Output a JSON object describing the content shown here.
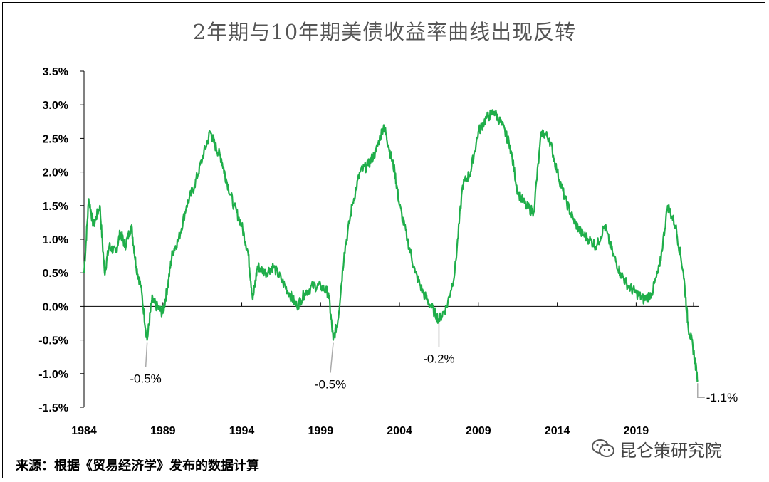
{
  "source_note": "来源：根据《贸易经济学》发布的数据计算",
  "watermark": {
    "text": "昆仑策研究院",
    "icon": "wechat-icon"
  },
  "chart_data": {
    "type": "line",
    "title": "2年期与10年期美债收益率曲线出现反转",
    "xlabel": "",
    "ylabel": "",
    "xlim": [
      1984,
      2023
    ],
    "ylim": [
      -1.5,
      3.5
    ],
    "x_ticks": [
      1984,
      1989,
      1994,
      1999,
      2004,
      2009,
      2014,
      2019
    ],
    "x_tick_labels": [
      "1984",
      "1989",
      "1994",
      "1999",
      "2004",
      "2009",
      "2014",
      "2019"
    ],
    "y_ticks": [
      -1.5,
      -1.0,
      -0.5,
      0.0,
      0.5,
      1.0,
      1.5,
      2.0,
      2.5,
      3.0,
      3.5
    ],
    "y_tick_labels": [
      "-1.5%",
      "-1.0%",
      "-0.5%",
      "0.0%",
      "0.5%",
      "1.0%",
      "1.5%",
      "2.0%",
      "2.5%",
      "3.0%",
      "3.5%"
    ],
    "grid": false,
    "legend": "none",
    "colors": {
      "line": "#1fae4a",
      "axis": "#000000",
      "leader": "#aaaaaa"
    },
    "series": [
      {
        "x": [
          1984.0,
          1984.3,
          1984.6,
          1985.0,
          1985.3,
          1985.6,
          1986.0,
          1986.3,
          1986.6,
          1987.0,
          1987.3,
          1987.6,
          1988.0,
          1988.3,
          1988.6,
          1989.0,
          1989.3,
          1989.6,
          1990.0,
          1990.5,
          1991.0,
          1991.5,
          1992.0,
          1992.3,
          1992.7,
          1993.0,
          1993.5,
          1994.0,
          1994.4,
          1994.7,
          1995.0,
          1995.5,
          1996.0,
          1996.5,
          1997.0,
          1997.5,
          1998.0,
          1998.5,
          1999.0,
          1999.5,
          1999.8,
          2000.1,
          2000.5,
          2001.0,
          2001.5,
          2002.0,
          2002.5,
          2003.0,
          2003.3,
          2003.7,
          2004.0,
          2004.5,
          2005.0,
          2005.5,
          2006.0,
          2006.5,
          2007.0,
          2007.5,
          2008.0,
          2008.5,
          2009.0,
          2009.5,
          2010.0,
          2010.5,
          2011.0,
          2011.5,
          2012.0,
          2012.5,
          2013.0,
          2013.5,
          2014.0,
          2014.5,
          2015.0,
          2015.5,
          2016.0,
          2016.5,
          2017.0,
          2017.5,
          2018.0,
          2018.5,
          2019.0,
          2019.5,
          2020.0,
          2020.5,
          2021.0,
          2021.5,
          2022.0,
          2022.3,
          2022.6,
          2022.9
        ],
        "y": [
          0.5,
          1.6,
          1.2,
          1.5,
          0.5,
          0.9,
          0.8,
          1.1,
          0.9,
          1.2,
          0.6,
          0.3,
          -0.5,
          0.1,
          0.0,
          -0.1,
          0.3,
          0.8,
          1.0,
          1.5,
          1.8,
          2.2,
          2.6,
          2.4,
          2.2,
          1.9,
          1.5,
          1.2,
          0.8,
          0.1,
          0.6,
          0.5,
          0.6,
          0.4,
          0.2,
          0.0,
          0.2,
          0.3,
          0.3,
          0.2,
          -0.5,
          -0.2,
          0.8,
          1.5,
          2.0,
          2.1,
          2.3,
          2.7,
          2.4,
          2.0,
          1.5,
          1.0,
          0.5,
          0.2,
          0.0,
          -0.2,
          0.0,
          0.5,
          1.8,
          2.0,
          2.6,
          2.8,
          2.9,
          2.7,
          2.4,
          1.7,
          1.5,
          1.4,
          2.6,
          2.5,
          2.0,
          1.6,
          1.3,
          1.1,
          1.0,
          0.9,
          1.2,
          0.8,
          0.5,
          0.3,
          0.2,
          0.1,
          0.2,
          0.6,
          1.5,
          1.2,
          0.5,
          -0.3,
          -0.6,
          -1.1
        ]
      }
    ],
    "annotations": [
      {
        "text": "-0.5%",
        "x": 1988.0,
        "y": -0.5
      },
      {
        "text": "-0.5%",
        "x": 1999.8,
        "y": -0.5
      },
      {
        "text": "-0.2%",
        "x": 2006.5,
        "y": -0.2
      },
      {
        "text": "-1.1%",
        "x": 2022.9,
        "y": -1.1
      }
    ]
  }
}
